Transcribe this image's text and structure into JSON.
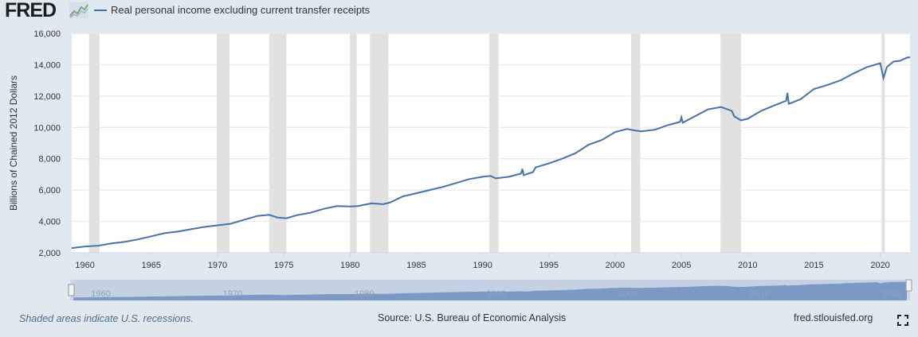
{
  "header": {
    "logo_text": "FRED",
    "legend_label": "Real personal income excluding current transfer receipts"
  },
  "footer": {
    "note": "Shaded areas indicate U.S. recessions.",
    "source": "Source: U.S. Bureau of Economic Analysis",
    "site": "fred.stlouisfed.org"
  },
  "icons": {
    "logo_graph": "fred-graph-icon",
    "fullscreen": "fullscreen-icon"
  },
  "colors": {
    "series": "#4572a7",
    "recession": "#e1e1e1",
    "background": "#e1e9f0",
    "navigator_fill": "#6e8fbf"
  },
  "chart_data": {
    "type": "line",
    "ylabel": "Billions of Chained 2012 Dollars",
    "ylim": [
      2000,
      16000
    ],
    "yticks": [
      2000,
      4000,
      6000,
      8000,
      10000,
      12000,
      14000,
      16000
    ],
    "ytick_labels": [
      "2,000",
      "4,000",
      "6,000",
      "8,000",
      "10,000",
      "12,000",
      "14,000",
      "16,000"
    ],
    "xlim": [
      1959.0,
      2022.25
    ],
    "xticks": [
      1960,
      1965,
      1970,
      1975,
      1980,
      1985,
      1990,
      1995,
      2000,
      2005,
      2010,
      2015,
      2020
    ],
    "navigator_ticks": [
      1960,
      1970,
      1980,
      1990,
      2000,
      2010,
      2020
    ],
    "recessions": [
      [
        1960.3,
        1961.1
      ],
      [
        1969.95,
        1970.9
      ],
      [
        1973.9,
        1975.2
      ],
      [
        1980.0,
        1980.5
      ],
      [
        1981.5,
        1982.9
      ],
      [
        1990.5,
        1991.2
      ],
      [
        2001.2,
        2001.9
      ],
      [
        2007.95,
        2009.5
      ],
      [
        2020.1,
        2020.35
      ]
    ],
    "series": [
      {
        "name": "Real personal income excluding current transfer receipts",
        "x": [
          1959.0,
          1960.0,
          1961.0,
          1962.0,
          1963.0,
          1964.0,
          1965.0,
          1966.0,
          1967.0,
          1968.0,
          1969.0,
          1970.0,
          1971.0,
          1972.0,
          1973.0,
          1973.9,
          1974.5,
          1975.2,
          1976.0,
          1977.0,
          1978.0,
          1979.0,
          1980.0,
          1980.6,
          1981.0,
          1981.6,
          1982.5,
          1983.0,
          1984.0,
          1985.0,
          1986.0,
          1987.0,
          1988.0,
          1989.0,
          1990.0,
          1990.6,
          1991.0,
          1992.0,
          1992.9,
          1993.0,
          1993.1,
          1993.8,
          1994.0,
          1995.0,
          1996.0,
          1997.0,
          1998.0,
          1999.0,
          2000.0,
          2000.9,
          2001.5,
          2002.0,
          2003.0,
          2004.0,
          2004.9,
          2005.0,
          2005.1,
          2006.0,
          2007.0,
          2008.0,
          2008.8,
          2009.0,
          2009.5,
          2010.0,
          2011.0,
          2012.0,
          2012.9,
          2013.0,
          2013.1,
          2014.0,
          2015.0,
          2016.0,
          2017.0,
          2018.0,
          2019.0,
          2020.0,
          2020.25,
          2020.5,
          2021.0,
          2021.5,
          2022.0,
          2022.25
        ],
        "values": [
          2300,
          2400,
          2450,
          2600,
          2700,
          2850,
          3050,
          3250,
          3350,
          3500,
          3650,
          3750,
          3850,
          4100,
          4350,
          4420,
          4250,
          4200,
          4400,
          4550,
          4800,
          4980,
          4950,
          4980,
          5050,
          5150,
          5100,
          5200,
          5600,
          5800,
          6000,
          6200,
          6450,
          6700,
          6850,
          6900,
          6750,
          6850,
          7050,
          7350,
          6950,
          7150,
          7450,
          7700,
          8000,
          8350,
          8900,
          9200,
          9700,
          9900,
          9800,
          9750,
          9850,
          10150,
          10350,
          10650,
          10300,
          10700,
          11150,
          11300,
          11050,
          10700,
          10450,
          10550,
          11050,
          11400,
          11700,
          12200,
          11500,
          11800,
          12450,
          12700,
          13000,
          13450,
          13850,
          14100,
          13150,
          13850,
          14200,
          14250,
          14450,
          14480
        ]
      }
    ]
  }
}
